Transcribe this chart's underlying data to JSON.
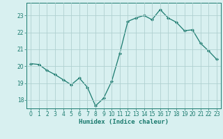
{
  "x": [
    0,
    1,
    2,
    3,
    4,
    5,
    6,
    7,
    8,
    9,
    10,
    11,
    12,
    13,
    14,
    15,
    16,
    17,
    18,
    19,
    20,
    21,
    22,
    23
  ],
  "y": [
    20.15,
    20.1,
    19.75,
    19.5,
    19.2,
    18.9,
    19.3,
    18.75,
    17.65,
    18.1,
    19.1,
    20.75,
    22.65,
    22.85,
    23.0,
    22.75,
    23.35,
    22.85,
    22.6,
    22.1,
    22.15,
    21.35,
    20.9,
    20.4
  ],
  "line_color": "#1a7a6e",
  "marker": "D",
  "marker_size": 2,
  "background_color": "#d8f0f0",
  "grid_color": "#b0d0d0",
  "xlabel": "Humidex (Indice chaleur)",
  "ylim": [
    17.5,
    23.75
  ],
  "yticks": [
    18,
    19,
    20,
    21,
    22,
    23
  ],
  "xlim": [
    -0.5,
    23.5
  ],
  "xticks": [
    0,
    1,
    2,
    3,
    4,
    5,
    6,
    7,
    8,
    9,
    10,
    11,
    12,
    13,
    14,
    15,
    16,
    17,
    18,
    19,
    20,
    21,
    22,
    23
  ],
  "tick_fontsize": 5.5,
  "xlabel_fontsize": 6.5
}
